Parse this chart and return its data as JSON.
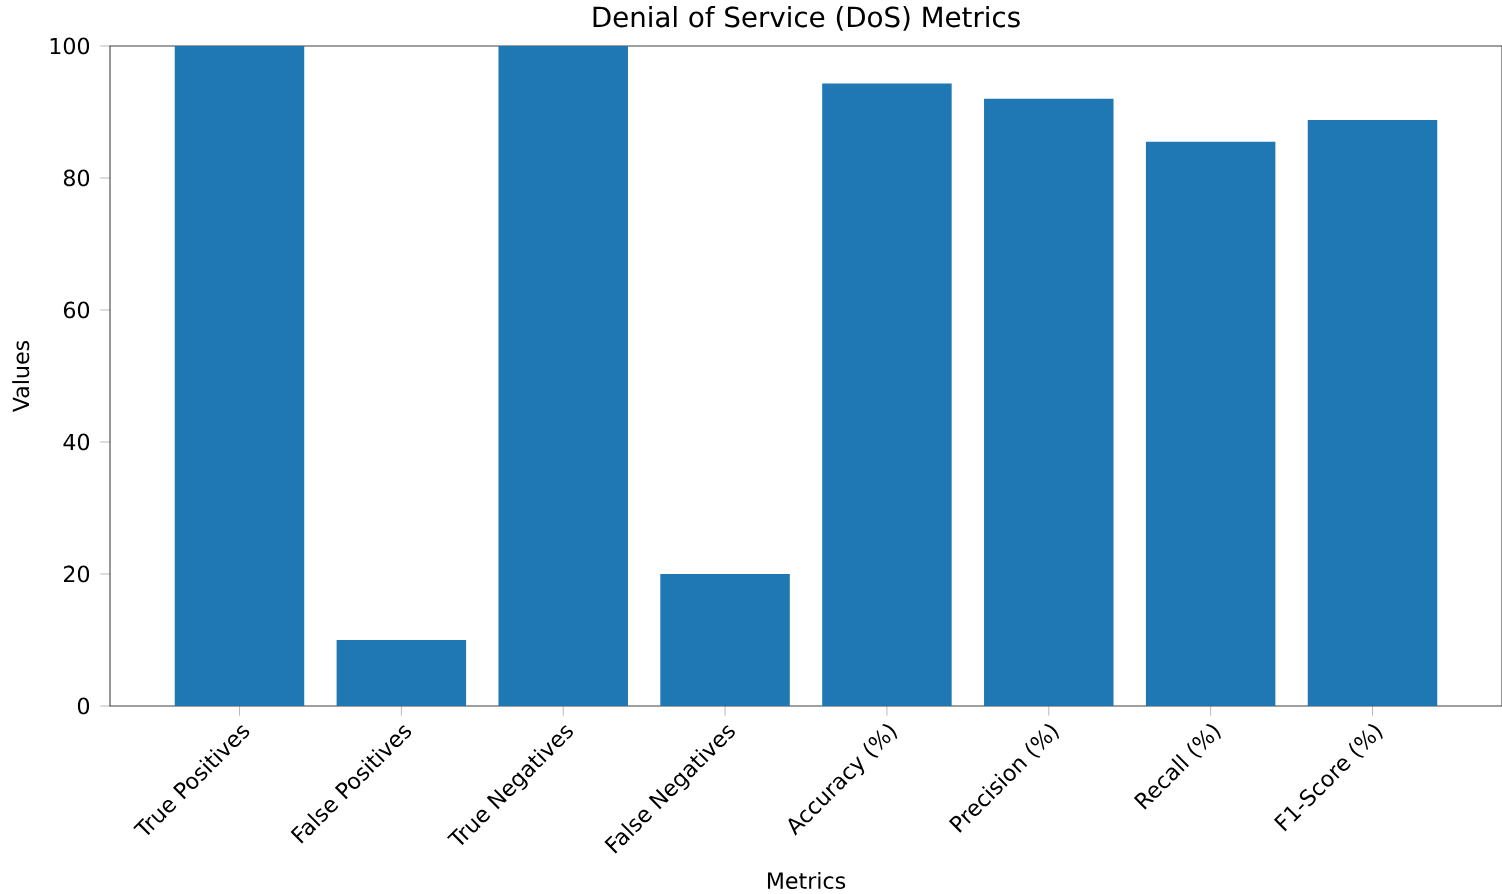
{
  "chart_data": {
    "type": "bar",
    "title": "Denial of Service (DoS) Metrics",
    "xlabel": "Metrics",
    "ylabel": "Values",
    "categories": [
      "True Positives",
      "False Positives",
      "True Negatives",
      "False Negatives",
      "Accuracy (%)",
      "Precision (%)",
      "Recall (%)",
      "F1-Score (%)"
    ],
    "values": [
      100,
      10,
      100,
      20,
      94.3,
      92.0,
      85.5,
      88.8
    ],
    "color": "#1f77b4",
    "ylim": [
      0,
      100
    ],
    "yticks": [
      0,
      20,
      40,
      60,
      80,
      100
    ]
  }
}
